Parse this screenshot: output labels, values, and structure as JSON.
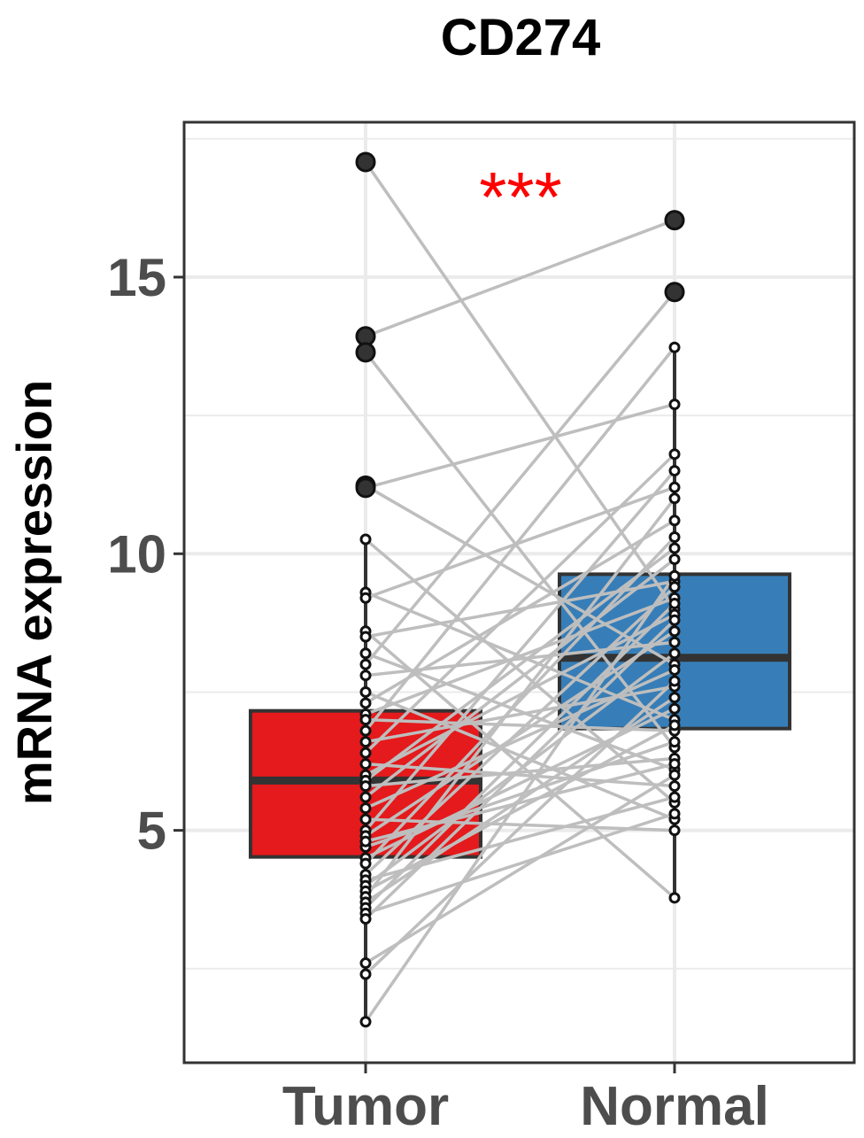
{
  "chart_data": {
    "type": "paired-box",
    "title": "CD274",
    "y_label": "mRNA expression",
    "annotation": "***",
    "annotation_color": "#ff0000",
    "categories": [
      "Tumor",
      "Normal"
    ],
    "colors": [
      "#e41a1c",
      "#377eb8"
    ],
    "boxes": [
      {
        "whisker_low": 1.54,
        "q1": 4.52,
        "median": 5.9,
        "q3": 7.16,
        "whisker_high": 10.26
      },
      {
        "whisker_low": 3.78,
        "q1": 6.84,
        "median": 8.12,
        "q3": 9.63,
        "whisker_high": 13.73
      }
    ],
    "series": [
      {
        "name": "Tumor",
        "values": [
          17.08,
          13.93,
          13.64,
          11.23,
          11.19,
          10.26,
          9.3,
          9.2,
          8.6,
          8.5,
          8.2,
          8.0,
          7.8,
          7.5,
          7.3,
          7.1,
          7.0,
          6.8,
          6.6,
          6.4,
          6.2,
          6.0,
          5.9,
          5.8,
          5.6,
          5.4,
          5.2,
          5.0,
          4.9,
          4.7,
          4.5,
          4.4,
          4.2,
          4.1,
          4.0,
          3.9,
          3.8,
          3.7,
          3.6,
          3.5,
          3.4,
          2.6,
          2.4,
          1.54,
          4.8
        ]
      },
      {
        "name": "Normal",
        "values": [
          9.0,
          16.03,
          6.5,
          8.0,
          12.7,
          5.5,
          7.0,
          11.2,
          3.78,
          9.5,
          6.1,
          14.73,
          8.4,
          5.2,
          10.6,
          9.2,
          6.8,
          13.73,
          7.6,
          11.8,
          5.8,
          8.9,
          10.1,
          6.3,
          9.9,
          7.9,
          5.0,
          11.5,
          8.6,
          6.6,
          7.2,
          10.3,
          9.4,
          5.6,
          8.2,
          6.9,
          11.0,
          7.4,
          9.1,
          5.3,
          8.8,
          6.0,
          7.7,
          9.6,
          6.2
        ]
      }
    ],
    "line_color": "#bebebe",
    "ylim": [
      0.8,
      17.8
    ],
    "yticks": [
      5,
      10,
      15
    ],
    "minor_yticks": [
      2.5,
      7.5,
      12.5,
      17.5
    ],
    "grid": true
  }
}
